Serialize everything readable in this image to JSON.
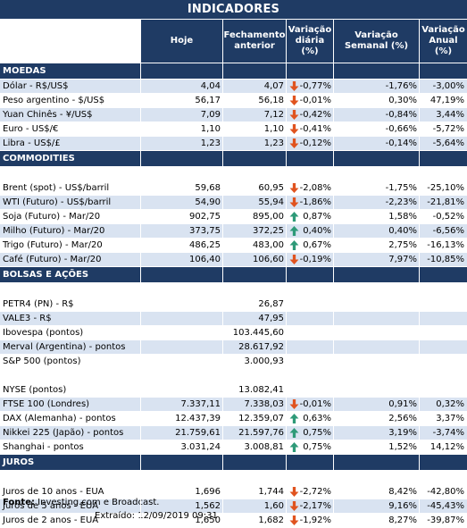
{
  "title": "INDICADORES",
  "headers": {
    "hoje": "Hoje",
    "fechamento": "Fechamento anterior",
    "var_diaria": "Variação diária (%)",
    "var_semanal": "Variação Semanal (%)",
    "var_anual": "Variação Anual (%)"
  },
  "colors": {
    "header_bg": "#1f3b64",
    "row_alt": "#d9e3f1",
    "arrow_down": "#e0531f",
    "arrow_up": "#2e9a78"
  },
  "sections": [
    {
      "title": "MOEDAS",
      "rows": [
        {
          "name": "Dólar - R$/US$",
          "hoje": "4,04",
          "fechamento": "4,07",
          "dir": "down",
          "var_diaria": "-0,77%",
          "var_semanal": "-1,76%",
          "var_anual": "-3,00%"
        },
        {
          "name": "Peso argentino - $/US$",
          "hoje": "56,17",
          "fechamento": "56,18",
          "dir": "down",
          "var_diaria": "-0,01%",
          "var_semanal": "0,30%",
          "var_anual": "47,19%"
        },
        {
          "name": "Yuan Chinês - ¥/US$",
          "hoje": "7,09",
          "fechamento": "7,12",
          "dir": "down",
          "var_diaria": "-0,42%",
          "var_semanal": "-0,84%",
          "var_anual": "3,44%"
        },
        {
          "name": "Euro - US$/€",
          "hoje": "1,10",
          "fechamento": "1,10",
          "dir": "down",
          "var_diaria": "-0,41%",
          "var_semanal": "-0,66%",
          "var_anual": "-5,72%"
        },
        {
          "name": "Libra - US$/£",
          "hoje": "1,23",
          "fechamento": "1,23",
          "dir": "down",
          "var_diaria": "-0,12%",
          "var_semanal": "-0,14%",
          "var_anual": "-5,64%"
        }
      ]
    },
    {
      "title": "COMMODITIES",
      "rows": [
        {
          "name": "",
          "hoje": "",
          "fechamento": "",
          "dir": "",
          "var_diaria": "",
          "var_semanal": "",
          "var_anual": ""
        },
        {
          "name": "Brent (spot) - US$/barril",
          "hoje": "59,68",
          "fechamento": "60,95",
          "dir": "down",
          "var_diaria": "-2,08%",
          "var_semanal": "-1,75%",
          "var_anual": "-25,10%"
        },
        {
          "name": "WTI (Futuro) - US$/barril",
          "hoje": "54,90",
          "fechamento": "55,94",
          "dir": "down",
          "var_diaria": "-1,86%",
          "var_semanal": "-2,23%",
          "var_anual": "-21,81%"
        },
        {
          "name": "Soja (Futuro) - Mar/20",
          "hoje": "902,75",
          "fechamento": "895,00",
          "dir": "up",
          "var_diaria": "0,87%",
          "var_semanal": "1,58%",
          "var_anual": "-0,52%"
        },
        {
          "name": "Milho (Futuro) - Mar/20",
          "hoje": "373,75",
          "fechamento": "372,25",
          "dir": "up",
          "var_diaria": "0,40%",
          "var_semanal": "0,40%",
          "var_anual": "-6,56%"
        },
        {
          "name": "Trigo (Futuro) - Mar/20",
          "hoje": "486,25",
          "fechamento": "483,00",
          "dir": "up",
          "var_diaria": "0,67%",
          "var_semanal": "2,75%",
          "var_anual": "-16,13%"
        },
        {
          "name": "Café (Futuro) - Mar/20",
          "hoje": "106,40",
          "fechamento": "106,60",
          "dir": "down",
          "var_diaria": "-0,19%",
          "var_semanal": "7,97%",
          "var_anual": "-10,85%"
        }
      ]
    },
    {
      "title": "BOLSAS E AÇÕES",
      "rows": [
        {
          "name": "",
          "hoje": "",
          "fechamento": "",
          "dir": "",
          "var_diaria": "",
          "var_semanal": "",
          "var_anual": ""
        },
        {
          "name": "PETR4 (PN) - R$",
          "hoje": "",
          "fechamento": "26,87",
          "dir": "",
          "var_diaria": "",
          "var_semanal": "",
          "var_anual": ""
        },
        {
          "name": "VALE3 - R$",
          "hoje": "",
          "fechamento": "47,95",
          "dir": "",
          "var_diaria": "",
          "var_semanal": "",
          "var_anual": ""
        },
        {
          "name": "Ibovespa (pontos)",
          "hoje": "",
          "fechamento": "103.445,60",
          "dir": "",
          "var_diaria": "",
          "var_semanal": "",
          "var_anual": ""
        },
        {
          "name": "Merval (Argentina) - pontos",
          "hoje": "",
          "fechamento": "28.617,92",
          "dir": "",
          "var_diaria": "",
          "var_semanal": "",
          "var_anual": ""
        },
        {
          "name": "S&P 500 (pontos)",
          "hoje": "",
          "fechamento": "3.000,93",
          "dir": "",
          "var_diaria": "",
          "var_semanal": "",
          "var_anual": ""
        },
        {
          "name": "",
          "hoje": "",
          "fechamento": "",
          "dir": "",
          "var_diaria": "",
          "var_semanal": "",
          "var_anual": ""
        },
        {
          "name": "NYSE (pontos)",
          "hoje": "",
          "fechamento": "13.082,41",
          "dir": "",
          "var_diaria": "",
          "var_semanal": "",
          "var_anual": ""
        },
        {
          "name": "FTSE 100 (Londres)",
          "hoje": "7.337,11",
          "fechamento": "7.338,03",
          "dir": "down",
          "var_diaria": "-0,01%",
          "var_semanal": "0,91%",
          "var_anual": "0,32%"
        },
        {
          "name": "DAX (Alemanha) - pontos",
          "hoje": "12.437,39",
          "fechamento": "12.359,07",
          "dir": "up",
          "var_diaria": "0,63%",
          "var_semanal": "2,56%",
          "var_anual": "3,37%"
        },
        {
          "name": "Nikkei 225 (Japão) - pontos",
          "hoje": "21.759,61",
          "fechamento": "21.597,76",
          "dir": "up",
          "var_diaria": "0,75%",
          "var_semanal": "3,19%",
          "var_anual": "-3,74%"
        },
        {
          "name": "Shanghai - pontos",
          "hoje": "3.031,24",
          "fechamento": "3.008,81",
          "dir": "up",
          "var_diaria": "0,75%",
          "var_semanal": "1,52%",
          "var_anual": "14,12%"
        }
      ]
    },
    {
      "title": "JUROS",
      "rows": [
        {
          "name": "",
          "hoje": "",
          "fechamento": "",
          "dir": "",
          "var_diaria": "",
          "var_semanal": "",
          "var_anual": ""
        },
        {
          "name": "Juros de 10 anos - EUA",
          "hoje": "1,696",
          "fechamento": "1,744",
          "dir": "down",
          "var_diaria": "-2,72%",
          "var_semanal": "8,42%",
          "var_anual": "-42,80%"
        },
        {
          "name": "Juros de 5 anos - EUA",
          "hoje": "1,562",
          "fechamento": "1,60",
          "dir": "down",
          "var_diaria": "-2,17%",
          "var_semanal": "9,16%",
          "var_anual": "-45,43%"
        },
        {
          "name": "Juros de 2 anos - EUA",
          "hoje": "1,650",
          "fechamento": "1,682",
          "dir": "down",
          "var_diaria": "-1,92%",
          "var_semanal": "8,27%",
          "var_anual": "-39,87%"
        }
      ]
    }
  ],
  "footer": {
    "fonte_label": "Fonte:",
    "fonte_value": "Investing.com e Broadcast.",
    "extraido_label": "Extraído:",
    "extraido_value": "12/09/2019 09:31"
  }
}
